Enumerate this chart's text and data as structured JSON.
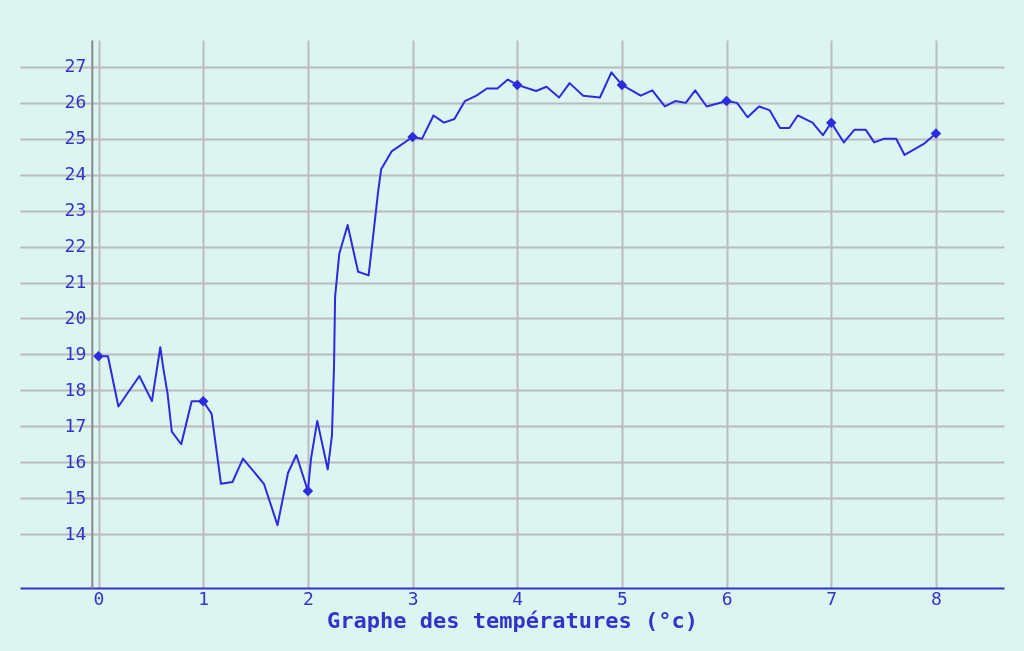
{
  "chart_data": {
    "type": "line",
    "xlabel": "Graphe des températures (°c)",
    "xlim": [
      -0.75,
      8.65
    ],
    "ylim": [
      12.5,
      27.75
    ],
    "xticks": [
      0,
      1,
      2,
      3,
      4,
      5,
      6,
      7,
      8
    ],
    "yticks": [
      14,
      15,
      16,
      17,
      18,
      19,
      20,
      21,
      22,
      23,
      24,
      25,
      26,
      27
    ],
    "grid": true,
    "series": [
      {
        "marker": "none",
        "line_style": "solid",
        "color": "#2b2be0",
        "x": [
          0,
          0.09,
          0.19,
          0.39,
          0.51,
          0.59,
          0.62,
          0.66,
          0.7,
          0.79,
          0.89,
          1.0,
          1.08,
          1.17,
          1.28,
          1.38,
          1.58,
          1.71,
          1.81,
          1.89,
          2.0,
          2.03,
          2.09,
          2.19,
          2.23,
          2.25,
          2.26,
          2.3,
          2.38,
          2.48,
          2.58,
          2.62,
          2.67,
          2.7,
          2.8,
          3.0,
          3.09,
          3.2,
          3.3,
          3.4,
          3.5,
          3.61,
          3.71,
          3.81,
          3.91,
          4.0,
          4.18,
          4.28,
          4.4,
          4.5,
          4.63,
          4.79,
          4.9,
          5.0,
          5.18,
          5.29,
          5.41,
          5.51,
          5.61,
          5.7,
          5.81,
          6.0,
          6.1,
          6.2,
          6.31,
          6.41,
          6.51,
          6.6,
          6.68,
          6.82,
          6.92,
          7.0,
          7.12,
          7.22,
          7.33,
          7.41,
          7.5,
          7.62,
          7.7,
          7.88,
          8.0
        ],
        "values": [
          18.95,
          18.95,
          17.55,
          18.4,
          17.7,
          19.2,
          18.6,
          17.9,
          16.85,
          16.5,
          17.7,
          17.7,
          17.35,
          15.4,
          15.45,
          16.1,
          15.4,
          14.25,
          15.7,
          16.2,
          15.2,
          16.1,
          17.15,
          15.8,
          16.75,
          18.7,
          20.6,
          21.8,
          22.6,
          21.3,
          21.2,
          22.2,
          23.5,
          24.15,
          24.65,
          25.05,
          25.0,
          25.65,
          25.45,
          25.55,
          26.05,
          26.2,
          26.4,
          26.4,
          26.65,
          26.5,
          26.33,
          26.45,
          26.15,
          26.55,
          26.2,
          26.15,
          26.85,
          26.5,
          26.2,
          26.35,
          25.9,
          26.05,
          26.0,
          26.35,
          25.9,
          26.05,
          26.0,
          25.6,
          25.9,
          25.8,
          25.3,
          25.3,
          25.65,
          25.45,
          25.1,
          25.45,
          24.9,
          25.25,
          25.25,
          24.9,
          25.0,
          25.0,
          24.55,
          24.85,
          25.15
        ]
      },
      {
        "type": "scatter",
        "marker": "diamond",
        "color": "#2b2be0",
        "x": [
          0,
          1,
          2,
          3,
          4,
          5,
          6,
          7,
          8
        ],
        "values": [
          18.95,
          17.7,
          15.2,
          25.05,
          26.5,
          26.5,
          26.05,
          25.45,
          25.15
        ]
      }
    ]
  }
}
